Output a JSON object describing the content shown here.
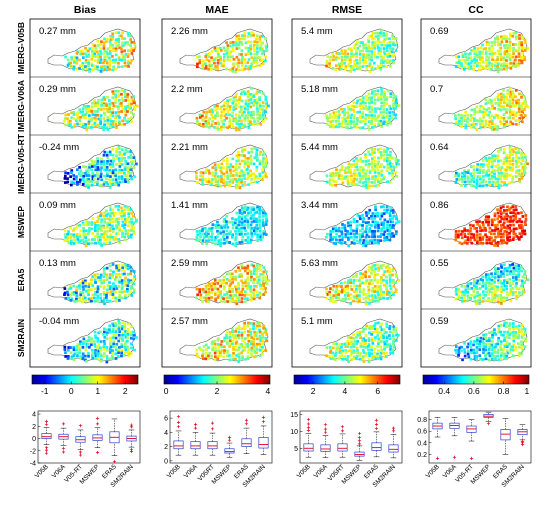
{
  "columns": [
    "Bias",
    "MAE",
    "RMSE",
    "CC"
  ],
  "rows": [
    "IMERG-V05B",
    "IMERG-V06A",
    "IMERG-V05-RT",
    "MSWEP",
    "ERA5",
    "SM2RAIN"
  ],
  "values": [
    [
      "0.27 mm",
      "0.29 mm",
      "-0.24 mm",
      "0.09 mm",
      "0.13 mm",
      "-0.04 mm"
    ],
    [
      "2.26 mm",
      "2.2 mm",
      "2.21 mm",
      "1.41 mm",
      "2.59 mm",
      "2.57 mm"
    ],
    [
      "5.4 mm",
      "5.18 mm",
      "5.44 mm",
      "3.44 mm",
      "5.63 mm",
      "5.1 mm"
    ],
    [
      "0.69",
      "0.7",
      "0.64",
      "0.86",
      "0.55",
      "0.59"
    ]
  ],
  "colorbars": [
    {
      "ticks": [
        "-1",
        "0",
        "1",
        "2"
      ]
    },
    {
      "ticks": [
        "0",
        "2",
        "4"
      ]
    },
    {
      "ticks": [
        "2",
        "4",
        "6"
      ]
    },
    {
      "ticks": [
        "0.4",
        "0.6",
        "0.8",
        "1"
      ]
    }
  ],
  "chart_data": [
    {
      "type": "boxplot",
      "title": "Bias",
      "categories": [
        "V05B",
        "V06A",
        "V05-RT",
        "MSWEP",
        "ERA5",
        "SM2RAIN"
      ],
      "yticks": [
        "-4",
        "-2",
        "0",
        "2",
        "4"
      ],
      "ylim": [
        -4,
        4.5
      ],
      "boxes": [
        {
          "q1": 0,
          "median": 0.3,
          "q3": 0.8,
          "wlo": -1,
          "whi": 1.8,
          "outliers": [
            -2.4,
            -1.9,
            -1.5,
            2.3,
            2.8
          ]
        },
        {
          "q1": -0.1,
          "median": 0.3,
          "q3": 0.7,
          "wlo": -1.1,
          "whi": 1.7,
          "outliers": [
            -2.2,
            -1.6,
            2.4
          ]
        },
        {
          "q1": -0.6,
          "median": -0.2,
          "q3": 0.3,
          "wlo": -1.8,
          "whi": 1.4,
          "outliers": [
            -2.7,
            -2.2,
            2.1
          ]
        },
        {
          "q1": -0.3,
          "median": 0.1,
          "q3": 0.6,
          "wlo": -1.5,
          "whi": 1.8,
          "outliers": [
            -2.3,
            2.4,
            3.3
          ]
        },
        {
          "q1": -0.7,
          "median": 0.2,
          "q3": 1.1,
          "wlo": -2.8,
          "whi": 3.2,
          "outliers": [
            -3.8
          ]
        },
        {
          "q1": -0.4,
          "median": 0,
          "q3": 0.4,
          "wlo": -1.4,
          "whi": 1.4,
          "outliers": [
            -2.1,
            -1.8,
            1.9,
            2.2
          ]
        }
      ]
    },
    {
      "type": "boxplot",
      "title": "MAE",
      "categories": [
        "V05B",
        "V06A",
        "V05RT",
        "MSWEP",
        "ERA5",
        "SM2RAIN"
      ],
      "yticks": [
        "0",
        "2",
        "4",
        "6"
      ],
      "ylim": [
        -0.3,
        7
      ],
      "boxes": [
        {
          "q1": 1.7,
          "median": 2.1,
          "q3": 2.8,
          "wlo": 0.8,
          "whi": 4.2,
          "outliers": [
            4.8,
            5.4,
            6.2
          ]
        },
        {
          "q1": 1.7,
          "median": 2.1,
          "q3": 2.7,
          "wlo": 0.8,
          "whi": 4,
          "outliers": [
            4.6,
            5.1
          ]
        },
        {
          "q1": 1.7,
          "median": 2.1,
          "q3": 2.7,
          "wlo": 0.8,
          "whi": 3.9,
          "outliers": [
            4.5,
            5.3
          ]
        },
        {
          "q1": 1.1,
          "median": 1.3,
          "q3": 1.7,
          "wlo": 0.5,
          "whi": 2.5,
          "outliers": [
            2.9,
            3.3
          ]
        },
        {
          "q1": 2,
          "median": 2.4,
          "q3": 3.1,
          "wlo": 1,
          "whi": 4.6,
          "outliers": [
            5.2,
            5.7
          ]
        },
        {
          "q1": 1.8,
          "median": 2.3,
          "q3": 3.3,
          "wlo": 0.9,
          "whi": 4.9,
          "outliers": [
            5.5,
            6.1
          ]
        }
      ]
    },
    {
      "type": "boxplot",
      "title": "RMSE",
      "categories": [
        "V05B",
        "V06A",
        "V05RT",
        "MSWEP",
        "ERA5",
        "SM2RAIN"
      ],
      "yticks": [
        "5",
        "10",
        "15"
      ],
      "ylim": [
        0.8,
        16
      ],
      "boxes": [
        {
          "q1": 4.3,
          "median": 5.1,
          "q3": 6.4,
          "wlo": 2.5,
          "whi": 9.4,
          "outliers": [
            10.3,
            11.1,
            12.2,
            13.5
          ]
        },
        {
          "q1": 4.2,
          "median": 4.9,
          "q3": 6.1,
          "wlo": 2.4,
          "whi": 8.9,
          "outliers": [
            9.8,
            10.7,
            12
          ]
        },
        {
          "q1": 4.3,
          "median": 5.1,
          "q3": 6.4,
          "wlo": 2.5,
          "whi": 9.3,
          "outliers": [
            10.2,
            11.4
          ]
        },
        {
          "q1": 2.8,
          "median": 3.3,
          "q3": 4,
          "wlo": 1.6,
          "whi": 5.8,
          "outliers": [
            6.4,
            7.3,
            8.2,
            9.4
          ]
        },
        {
          "q1": 4.5,
          "median": 5.3,
          "q3": 6.7,
          "wlo": 2.6,
          "whi": 9.9,
          "outliers": [
            10.9,
            12.1,
            13.3
          ]
        },
        {
          "q1": 4,
          "median": 4.8,
          "q3": 6.1,
          "wlo": 2.3,
          "whi": 9.2,
          "outliers": [
            10.2,
            11
          ]
        }
      ]
    },
    {
      "type": "boxplot",
      "title": "CC",
      "categories": [
        "V05B",
        "V06A",
        "V05-RT",
        "MSWEP",
        "ERA5",
        "SM2RAIN"
      ],
      "yticks": [
        "0.2",
        "0.4",
        "0.6",
        "0.8"
      ],
      "ylim": [
        0.05,
        0.95
      ],
      "boxes": [
        {
          "q1": 0.64,
          "median": 0.69,
          "q3": 0.74,
          "wlo": 0.5,
          "whi": 0.84,
          "outliers": [
            0.13
          ]
        },
        {
          "q1": 0.65,
          "median": 0.7,
          "q3": 0.74,
          "wlo": 0.52,
          "whi": 0.84,
          "outliers": [
            0.15
          ]
        },
        {
          "q1": 0.58,
          "median": 0.64,
          "q3": 0.69,
          "wlo": 0.43,
          "whi": 0.8,
          "outliers": [
            0.13
          ]
        },
        {
          "q1": 0.84,
          "median": 0.86,
          "q3": 0.89,
          "wlo": 0.77,
          "whi": 0.93,
          "outliers": [
            0.73
          ]
        },
        {
          "q1": 0.45,
          "median": 0.55,
          "q3": 0.63,
          "wlo": 0.2,
          "whi": 0.82,
          "outliers": []
        },
        {
          "q1": 0.54,
          "median": 0.59,
          "q3": 0.63,
          "wlo": 0.45,
          "whi": 0.72,
          "outliers": [
            0.37,
            0.4,
            0.42
          ]
        }
      ]
    }
  ]
}
